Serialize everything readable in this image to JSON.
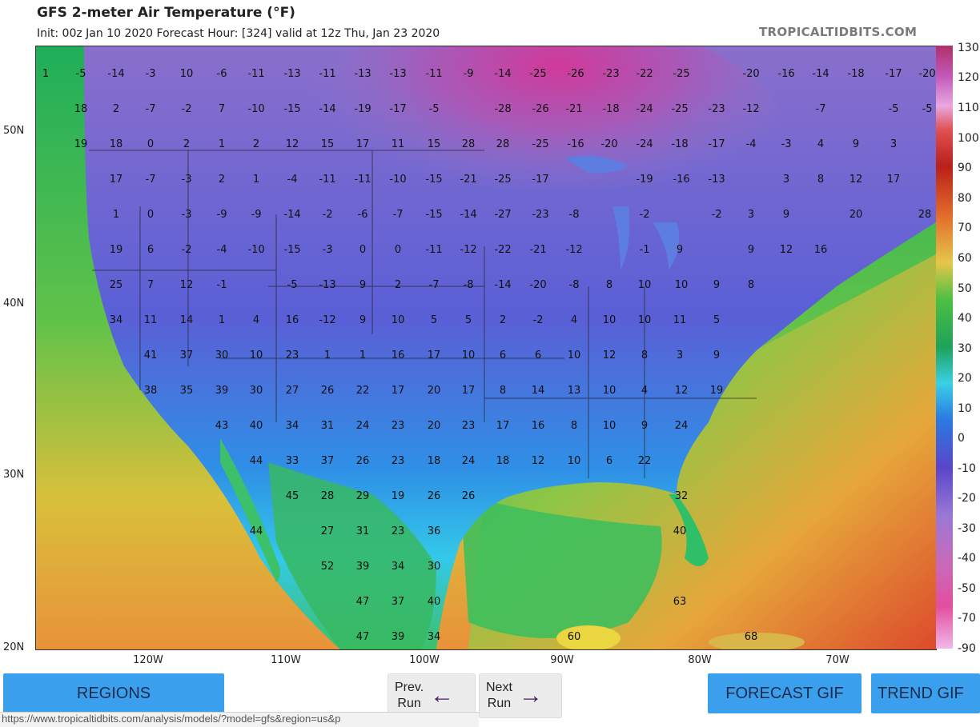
{
  "header": {
    "title": "GFS 2-meter Air Temperature (°F)",
    "subtitle": "Init: 00z Jan 10 2020   Forecast Hour: [324]   valid at 12z Thu, Jan 23 2020",
    "brand": "TROPICALTIDBITS.COM"
  },
  "map": {
    "lat_labels": [
      "50N",
      "40N",
      "30N",
      "20N"
    ],
    "lon_labels": [
      "120W",
      "110W",
      "100W",
      "90W",
      "80W",
      "70W"
    ],
    "temperature_points": [
      "1",
      "-5",
      "-14",
      "-3",
      "10",
      "-6",
      "-11",
      "-13",
      "-11",
      "-13",
      "-13",
      "-11",
      "-9",
      "-14",
      "-25",
      "-26",
      "-23",
      "-22",
      "-25",
      "-20",
      "-16",
      "-14",
      "-18",
      "-17",
      "-20",
      "18",
      "2",
      "-7",
      "-2",
      "7",
      "-10",
      "-15",
      "-14",
      "-19",
      "-17",
      "-5",
      "-28",
      "-26",
      "-21",
      "-18",
      "-24",
      "-25",
      "-23",
      "-12",
      "-7",
      "-5",
      "-5",
      "19",
      "18",
      "0",
      "2",
      "1",
      "2",
      "12",
      "15",
      "17",
      "11",
      "15",
      "28",
      "28",
      "-25",
      "-16",
      "-20",
      "-24",
      "-18",
      "-17",
      "-4",
      "-3",
      "4",
      "9",
      "3",
      "17",
      "-7",
      "-3",
      "2",
      "1",
      "-4",
      "-11",
      "-11",
      "-10",
      "-15",
      "-21",
      "-25",
      "-17",
      "-19",
      "-16",
      "-13",
      "3",
      "8",
      "12",
      "17",
      "1",
      "0",
      "-3",
      "-9",
      "-9",
      "-14",
      "-2",
      "-6",
      "-7",
      "-15",
      "-14",
      "-27",
      "-23",
      "-8",
      "-2",
      "-2",
      "3",
      "9",
      "20",
      "28",
      "19",
      "6",
      "-2",
      "-4",
      "-10",
      "-15",
      "-3",
      "0",
      "0",
      "-11",
      "-12",
      "-22",
      "-21",
      "-12",
      "-1",
      "9",
      "9",
      "12",
      "16",
      "25",
      "7",
      "12",
      "-1",
      "-5",
      "-13",
      "9",
      "2",
      "-7",
      "-8",
      "-14",
      "-20",
      "-8",
      "8",
      "10",
      "10",
      "9",
      "8",
      "34",
      "11",
      "14",
      "1",
      "4",
      "16",
      "-12",
      "9",
      "10",
      "5",
      "5",
      "2",
      "-2",
      "4",
      "10",
      "10",
      "11",
      "5",
      "41",
      "37",
      "30",
      "10",
      "23",
      "1",
      "1",
      "16",
      "17",
      "10",
      "6",
      "6",
      "10",
      "12",
      "8",
      "3",
      "9",
      "38",
      "35",
      "39",
      "30",
      "27",
      "26",
      "22",
      "17",
      "20",
      "17",
      "8",
      "14",
      "13",
      "10",
      "4",
      "12",
      "19",
      "43",
      "40",
      "34",
      "31",
      "24",
      "23",
      "20",
      "23",
      "17",
      "16",
      "8",
      "10",
      "9",
      "24",
      "44",
      "33",
      "37",
      "26",
      "23",
      "18",
      "24",
      "18",
      "12",
      "10",
      "6",
      "22",
      "45",
      "28",
      "29",
      "19",
      "26",
      "26",
      "32",
      "44",
      "27",
      "31",
      "23",
      "36",
      "40",
      "52",
      "39",
      "34",
      "30",
      "47",
      "37",
      "40",
      "63",
      "47",
      "39",
      "34",
      "60",
      "68"
    ]
  },
  "colorbar": {
    "labels": [
      "130",
      "120",
      "110",
      "100",
      "90",
      "80",
      "70",
      "60",
      "50",
      "40",
      "30",
      "20",
      "10",
      "0",
      "-10",
      "-20",
      "-30",
      "-40",
      "-50",
      "-70",
      "-90"
    ]
  },
  "buttons": {
    "regions": "REGIONS",
    "prev_line1": "Prev.",
    "prev_line2": "Run",
    "next_line1": "Next",
    "next_line2": "Run",
    "forecast_gif": "FORECAST GIF",
    "trend_gif": "TREND GIF"
  },
  "status_url": "https://www.tropicaltidbits.com/analysis/models/?model=gfs&region=us&p"
}
